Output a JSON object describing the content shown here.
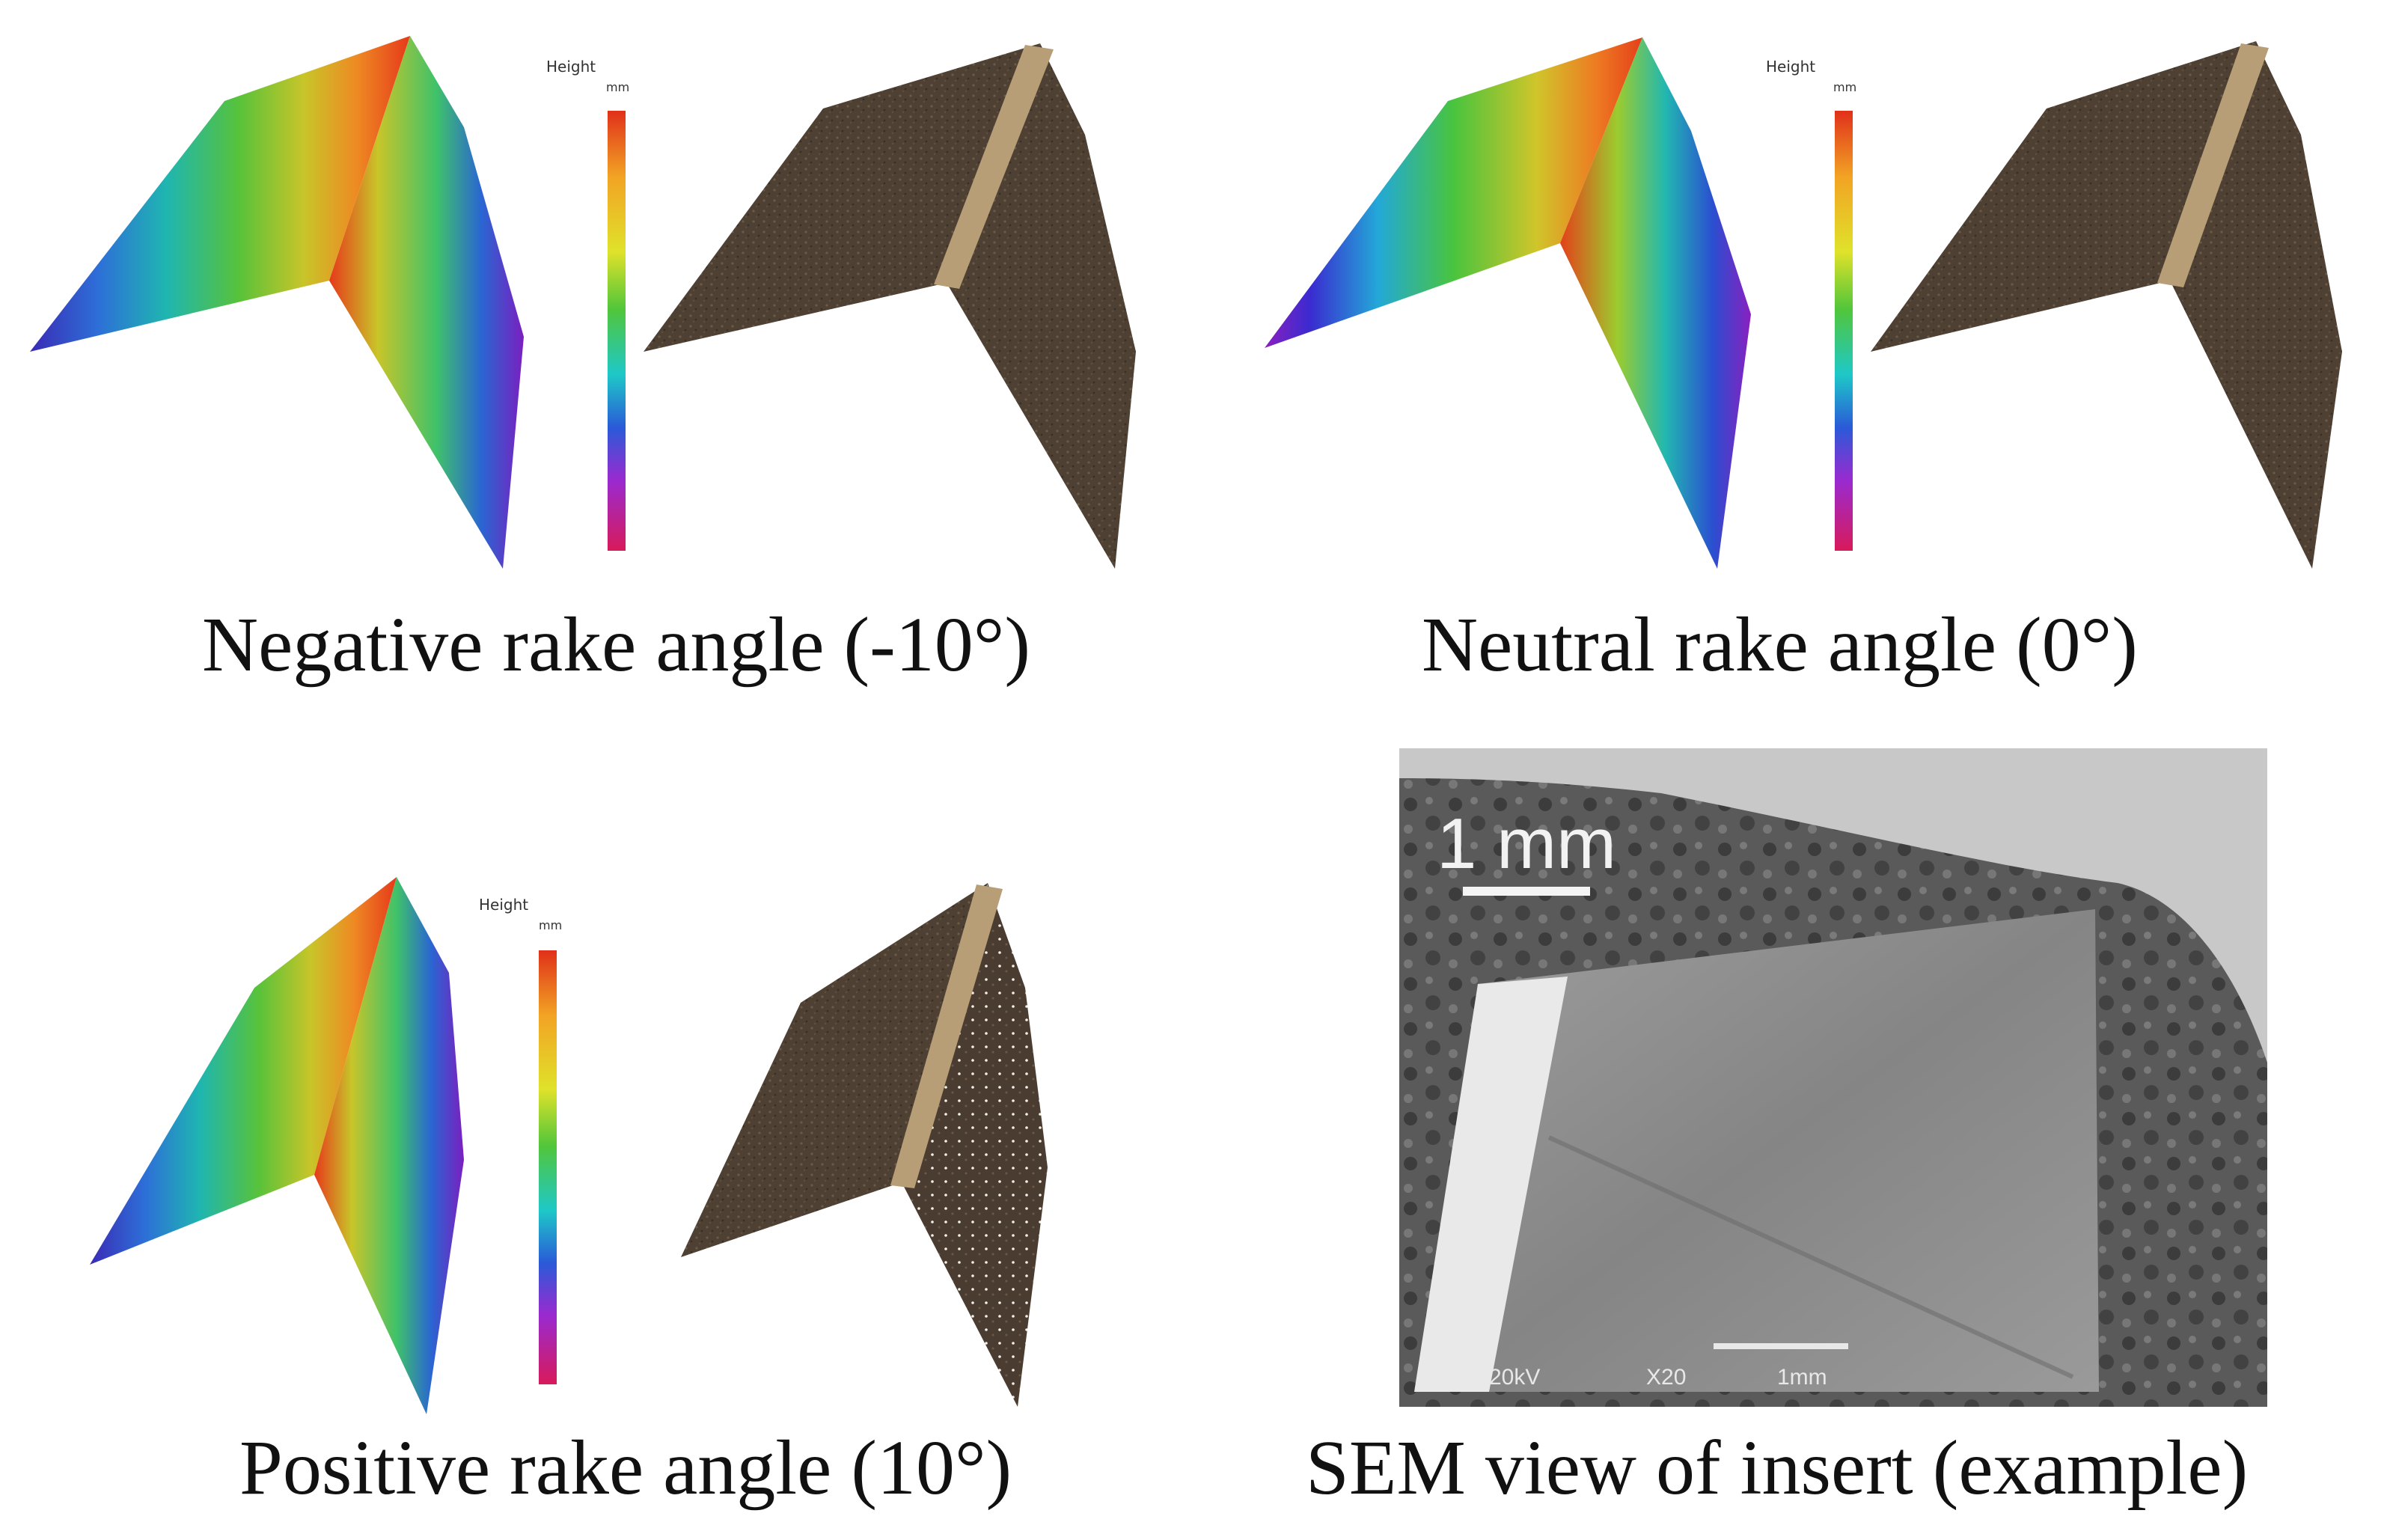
{
  "captions": {
    "negative": "Negative rake angle (-10°)",
    "neutral": "Neutral rake angle (0°)",
    "positive": "Positive rake angle (10°)",
    "sem": "SEM view of insert (example)"
  },
  "colorbar": {
    "title": "Height",
    "unit": "mm"
  },
  "sem": {
    "scale_label": "1 mm",
    "footer_kv": "20kV",
    "footer_x": "X20",
    "footer_scale": "1mm"
  },
  "colors": {
    "mesh_brown": "#4e4033",
    "edge_tan": "#b79e77",
    "rainbow": [
      "#4a1fb0",
      "#2b63d6",
      "#18b8c8",
      "#39c45b",
      "#b8d22b",
      "#f0a424",
      "#e3351a"
    ]
  }
}
